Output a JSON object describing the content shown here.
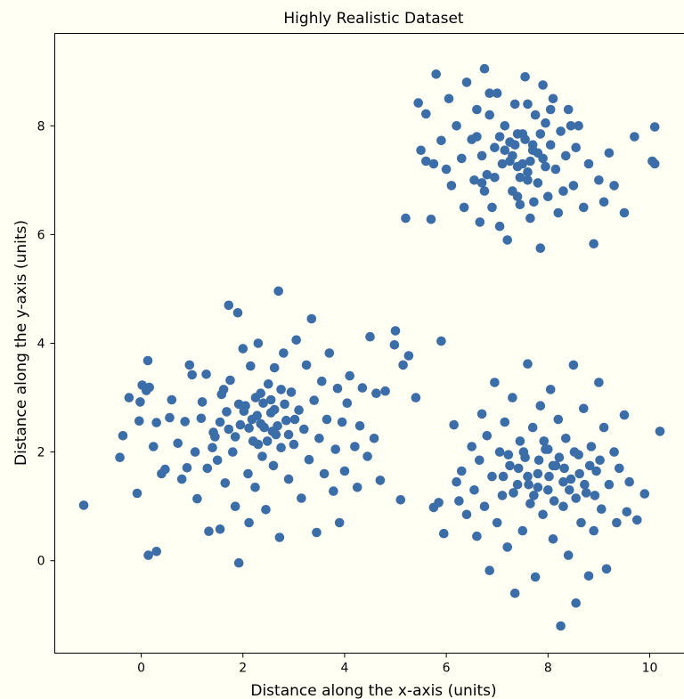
{
  "chart_data": {
    "type": "scatter",
    "title": "Highly Realistic Dataset",
    "xlabel": "Distance along the x-axis (units)",
    "ylabel": "Distance along the y-axis (units)",
    "xlim": [
      -1.7,
      10.7
    ],
    "ylim": [
      -1.7,
      9.7
    ],
    "xticks": [
      0,
      2,
      4,
      6,
      8,
      10
    ],
    "yticks": [
      0,
      2,
      4,
      6,
      8
    ],
    "grid": false,
    "marker_color": "#3b6ea8",
    "background": "#fffff4",
    "series": [
      {
        "points": [
          [
            -1.13,
            1.02
          ],
          [
            -0.42,
            1.9
          ],
          [
            -0.36,
            2.3
          ],
          [
            -0.24,
            3.0
          ],
          [
            -0.08,
            1.24
          ],
          [
            -0.04,
            2.57
          ],
          [
            -0.02,
            2.92
          ],
          [
            0.02,
            3.23
          ],
          [
            0.1,
            3.13
          ],
          [
            0.13,
            3.68
          ],
          [
            0.14,
            0.1
          ],
          [
            0.16,
            3.19
          ],
          [
            0.24,
            2.1
          ],
          [
            0.3,
            2.54
          ],
          [
            0.3,
            0.17
          ],
          [
            0.4,
            1.6
          ],
          [
            0.47,
            1.68
          ],
          [
            0.56,
            2.63
          ],
          [
            0.6,
            2.96
          ],
          [
            0.72,
            2.16
          ],
          [
            0.8,
            1.5
          ],
          [
            0.86,
            2.56
          ],
          [
            0.9,
            1.71
          ],
          [
            0.95,
            3.6
          ],
          [
            1.0,
            3.42
          ],
          [
            1.06,
            2.0
          ],
          [
            1.1,
            1.14
          ],
          [
            1.18,
            2.62
          ],
          [
            1.2,
            2.92
          ],
          [
            1.28,
            3.43
          ],
          [
            1.3,
            1.7
          ],
          [
            1.33,
            0.54
          ],
          [
            1.4,
            2.08
          ],
          [
            1.42,
            2.36
          ],
          [
            1.45,
            2.28
          ],
          [
            1.5,
            1.85
          ],
          [
            1.55,
            0.58
          ],
          [
            1.58,
            3.06
          ],
          [
            1.65,
            1.43
          ],
          [
            1.68,
            2.74
          ],
          [
            1.72,
            4.7
          ],
          [
            1.75,
            3.32
          ],
          [
            1.8,
            2.0
          ],
          [
            1.85,
            1.0
          ],
          [
            1.9,
            4.56
          ],
          [
            1.92,
            -0.04
          ],
          [
            1.95,
            2.5
          ],
          [
            2.0,
            3.9
          ],
          [
            2.05,
            2.85
          ],
          [
            2.1,
            1.6
          ],
          [
            2.12,
            0.7
          ],
          [
            2.15,
            3.58
          ],
          [
            2.2,
            2.2
          ],
          [
            2.24,
            1.35
          ],
          [
            2.28,
            2.67
          ],
          [
            2.3,
            4.0
          ],
          [
            2.35,
            3.08
          ],
          [
            2.38,
            1.92
          ],
          [
            2.42,
            2.45
          ],
          [
            2.45,
            0.94
          ],
          [
            2.5,
            3.25
          ],
          [
            2.55,
            2.72
          ],
          [
            2.6,
            1.75
          ],
          [
            2.62,
            3.55
          ],
          [
            2.65,
            2.32
          ],
          [
            2.7,
            4.96
          ],
          [
            2.72,
            0.43
          ],
          [
            2.75,
            2.08
          ],
          [
            2.8,
            3.82
          ],
          [
            2.85,
            2.58
          ],
          [
            2.9,
            1.5
          ],
          [
            2.95,
            3.1
          ],
          [
            3.0,
            2.14
          ],
          [
            3.05,
            4.06
          ],
          [
            3.1,
            2.77
          ],
          [
            3.15,
            1.15
          ],
          [
            3.2,
            2.42
          ],
          [
            3.25,
            3.6
          ],
          [
            3.3,
            1.86
          ],
          [
            3.35,
            4.45
          ],
          [
            3.4,
            2.95
          ],
          [
            3.45,
            0.52
          ],
          [
            3.5,
            2.25
          ],
          [
            3.55,
            3.3
          ],
          [
            3.6,
            1.6
          ],
          [
            3.65,
            2.6
          ],
          [
            3.7,
            3.82
          ],
          [
            3.78,
            1.28
          ],
          [
            3.82,
            2.05
          ],
          [
            3.86,
            3.17
          ],
          [
            3.9,
            0.7
          ],
          [
            3.95,
            2.55
          ],
          [
            4.0,
            1.65
          ],
          [
            4.05,
            2.9
          ],
          [
            4.1,
            3.4
          ],
          [
            4.2,
            2.1
          ],
          [
            4.25,
            1.35
          ],
          [
            4.3,
            2.48
          ],
          [
            4.35,
            3.18
          ],
          [
            4.45,
            1.92
          ],
          [
            4.5,
            4.12
          ],
          [
            4.58,
            2.25
          ],
          [
            4.62,
            3.08
          ],
          [
            4.7,
            1.48
          ],
          [
            4.8,
            3.12
          ],
          [
            4.98,
            3.97
          ],
          [
            5.0,
            4.23
          ],
          [
            5.1,
            1.12
          ],
          [
            5.15,
            3.6
          ],
          [
            5.26,
            3.77
          ],
          [
            5.4,
            3.0
          ],
          [
            5.75,
            0.98
          ],
          [
            5.85,
            1.07
          ],
          [
            5.9,
            4.04
          ],
          [
            1.55,
            2.55
          ],
          [
            1.72,
            2.42
          ],
          [
            2.02,
            2.75
          ],
          [
            2.18,
            2.6
          ],
          [
            2.25,
            3.0
          ],
          [
            2.4,
            2.9
          ],
          [
            2.48,
            2.2
          ],
          [
            2.55,
            2.96
          ],
          [
            2.68,
            2.48
          ],
          [
            2.82,
            2.88
          ],
          [
            2.35,
            2.52
          ],
          [
            2.58,
            2.38
          ],
          [
            2.12,
            2.44
          ],
          [
            1.92,
            2.88
          ],
          [
            2.75,
            3.15
          ],
          [
            3.02,
            2.6
          ],
          [
            1.85,
            2.28
          ],
          [
            2.3,
            2.14
          ],
          [
            2.62,
            2.78
          ],
          [
            2.9,
            2.32
          ],
          [
            1.62,
            3.15
          ],
          [
            6.66,
            6.23
          ],
          [
            6.75,
            9.05
          ],
          [
            6.8,
            7.1
          ],
          [
            6.85,
            8.2
          ],
          [
            6.9,
            6.5
          ],
          [
            6.95,
            7.6
          ],
          [
            7.0,
            8.6
          ],
          [
            7.05,
            6.15
          ],
          [
            7.1,
            7.3
          ],
          [
            7.15,
            8.0
          ],
          [
            7.2,
            5.9
          ],
          [
            7.25,
            7.7
          ],
          [
            7.3,
            6.8
          ],
          [
            7.35,
            8.4
          ],
          [
            7.4,
            7.25
          ],
          [
            7.45,
            6.55
          ],
          [
            7.5,
            7.85
          ],
          [
            7.55,
            8.9
          ],
          [
            7.6,
            7.0
          ],
          [
            7.65,
            6.3
          ],
          [
            7.7,
            7.55
          ],
          [
            7.75,
            8.2
          ],
          [
            7.8,
            6.95
          ],
          [
            7.85,
            5.75
          ],
          [
            7.9,
            7.4
          ],
          [
            7.95,
            8.05
          ],
          [
            8.0,
            6.7
          ],
          [
            8.05,
            7.65
          ],
          [
            8.1,
            8.5
          ],
          [
            8.15,
            7.2
          ],
          [
            8.2,
            6.4
          ],
          [
            8.25,
            7.9
          ],
          [
            8.3,
            6.8
          ],
          [
            8.35,
            7.45
          ],
          [
            8.4,
            8.3
          ],
          [
            8.5,
            6.9
          ],
          [
            8.55,
            7.6
          ],
          [
            8.6,
            8.0
          ],
          [
            8.7,
            6.5
          ],
          [
            8.8,
            7.3
          ],
          [
            8.9,
            5.83
          ],
          [
            9.0,
            7.0
          ],
          [
            9.1,
            6.6
          ],
          [
            9.2,
            7.5
          ],
          [
            9.3,
            6.9
          ],
          [
            9.5,
            6.4
          ],
          [
            9.7,
            7.8
          ],
          [
            10.05,
            7.35
          ],
          [
            10.1,
            7.3
          ],
          [
            10.1,
            7.98
          ],
          [
            5.6,
            8.22
          ],
          [
            5.6,
            7.35
          ],
          [
            5.7,
            6.28
          ],
          [
            5.8,
            8.95
          ],
          [
            5.9,
            7.73
          ],
          [
            6.0,
            7.2
          ],
          [
            6.05,
            8.5
          ],
          [
            6.1,
            6.9
          ],
          [
            6.2,
            8.0
          ],
          [
            6.3,
            7.4
          ],
          [
            6.35,
            6.5
          ],
          [
            6.4,
            8.8
          ],
          [
            6.5,
            7.75
          ],
          [
            6.55,
            7.0
          ],
          [
            6.6,
            8.3
          ],
          [
            6.7,
            7.45
          ],
          [
            6.75,
            6.8
          ],
          [
            5.2,
            6.3
          ],
          [
            5.45,
            8.42
          ],
          [
            5.5,
            7.55
          ],
          [
            5.75,
            7.3
          ],
          [
            7.3,
            7.45
          ],
          [
            7.5,
            7.3
          ],
          [
            7.7,
            7.65
          ],
          [
            7.4,
            7.85
          ],
          [
            7.6,
            7.15
          ],
          [
            7.8,
            7.5
          ],
          [
            7.35,
            7.65
          ],
          [
            7.55,
            7.75
          ],
          [
            7.65,
            7.35
          ],
          [
            7.45,
            7.05
          ],
          [
            7.25,
            7.35
          ],
          [
            7.85,
            7.85
          ],
          [
            7.15,
            7.55
          ],
          [
            7.95,
            7.25
          ],
          [
            7.05,
            7.8
          ],
          [
            7.6,
            8.4
          ],
          [
            7.4,
            6.7
          ],
          [
            8.05,
            8.3
          ],
          [
            6.95,
            7.05
          ],
          [
            7.72,
            6.6
          ],
          [
            6.6,
            7.8
          ],
          [
            8.45,
            8.0
          ],
          [
            6.85,
            8.6
          ],
          [
            7.9,
            8.75
          ],
          [
            6.7,
            6.95
          ],
          [
            6.3,
            1.65
          ],
          [
            6.4,
            0.85
          ],
          [
            6.5,
            2.1
          ],
          [
            6.55,
            1.3
          ],
          [
            6.6,
            0.45
          ],
          [
            6.65,
            1.85
          ],
          [
            6.7,
            2.7
          ],
          [
            6.75,
            1.0
          ],
          [
            6.8,
            2.3
          ],
          [
            6.85,
            -0.18
          ],
          [
            6.9,
            1.55
          ],
          [
            6.95,
            3.28
          ],
          [
            7.0,
            0.7
          ],
          [
            7.05,
            2.0
          ],
          [
            7.1,
            1.2
          ],
          [
            7.15,
            2.55
          ],
          [
            7.2,
            0.25
          ],
          [
            7.25,
            1.75
          ],
          [
            7.3,
            3.0
          ],
          [
            7.35,
            -0.6
          ],
          [
            7.4,
            1.4
          ],
          [
            7.45,
            2.2
          ],
          [
            7.5,
            0.55
          ],
          [
            7.55,
            1.9
          ],
          [
            7.6,
            3.62
          ],
          [
            7.65,
            1.05
          ],
          [
            7.7,
            2.45
          ],
          [
            7.75,
            -0.3
          ],
          [
            7.8,
            1.6
          ],
          [
            7.85,
            2.85
          ],
          [
            7.9,
            0.85
          ],
          [
            7.95,
            2.05
          ],
          [
            8.0,
            1.3
          ],
          [
            8.05,
            3.15
          ],
          [
            8.1,
            0.4
          ],
          [
            8.15,
            1.75
          ],
          [
            8.2,
            2.6
          ],
          [
            8.25,
            -1.2
          ],
          [
            8.3,
            1.0
          ],
          [
            8.35,
            2.25
          ],
          [
            8.4,
            0.1
          ],
          [
            8.45,
            1.5
          ],
          [
            8.5,
            3.6
          ],
          [
            8.55,
            -0.78
          ],
          [
            8.6,
            1.95
          ],
          [
            8.65,
            0.7
          ],
          [
            8.7,
            2.8
          ],
          [
            8.75,
            1.25
          ],
          [
            8.8,
            -0.28
          ],
          [
            8.85,
            2.1
          ],
          [
            8.9,
            0.55
          ],
          [
            8.95,
            1.65
          ],
          [
            9.0,
            3.28
          ],
          [
            9.05,
            0.95
          ],
          [
            9.1,
            2.45
          ],
          [
            9.15,
            -0.15
          ],
          [
            9.2,
            1.4
          ],
          [
            9.3,
            2.0
          ],
          [
            9.35,
            0.7
          ],
          [
            9.4,
            1.7
          ],
          [
            9.5,
            2.68
          ],
          [
            9.55,
            0.9
          ],
          [
            9.6,
            1.45
          ],
          [
            9.75,
            0.75
          ],
          [
            9.9,
            1.23
          ],
          [
            10.2,
            2.38
          ],
          [
            5.95,
            0.5
          ],
          [
            6.15,
            2.5
          ],
          [
            6.2,
            1.45
          ],
          [
            6.25,
            1.1
          ],
          [
            7.42,
            1.7
          ],
          [
            7.62,
            1.4
          ],
          [
            7.82,
            1.85
          ],
          [
            8.02,
            1.55
          ],
          [
            8.22,
            1.9
          ],
          [
            8.42,
            1.3
          ],
          [
            8.62,
            1.6
          ],
          [
            7.72,
            1.2
          ],
          [
            7.92,
            2.2
          ],
          [
            8.12,
            1.1
          ],
          [
            8.32,
            1.7
          ],
          [
            8.52,
            2.0
          ],
          [
            7.52,
            2.0
          ],
          [
            8.72,
            1.4
          ],
          [
            7.32,
            1.25
          ],
          [
            8.82,
            1.75
          ],
          [
            7.22,
            1.95
          ],
          [
            8.92,
            1.2
          ],
          [
            7.12,
            1.55
          ],
          [
            9.02,
            1.85
          ],
          [
            7.6,
            1.55
          ],
          [
            8.1,
            1.75
          ],
          [
            8.0,
            2.05
          ],
          [
            7.8,
            1.35
          ],
          [
            8.3,
            1.45
          ],
          [
            8.55,
            1.15
          ]
        ]
      }
    ]
  }
}
